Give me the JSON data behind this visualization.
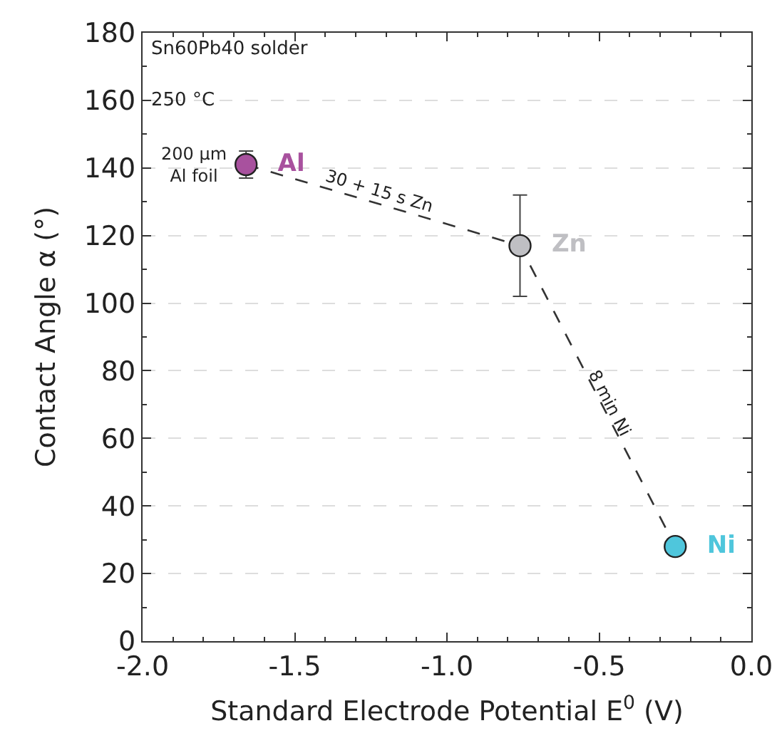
{
  "chart_data": {
    "type": "scatter",
    "xlabel": "Standard Electrode Potential E$^{0}$ (V)",
    "ylabel": "Contact Angle α (°)",
    "xlim": [
      -2.0,
      0.0
    ],
    "xticks": [
      {
        "value": -2,
        "label": "-2.0"
      },
      {
        "value": -1.5,
        "label": "-1.5"
      },
      {
        "value": -1,
        "label": "-1.0"
      },
      {
        "value": -0.5,
        "label": "-0.5"
      },
      {
        "value": 0,
        "label": "0.0"
      }
    ],
    "ylim": [
      0,
      180
    ],
    "yticks": [
      0,
      20,
      40,
      60,
      80,
      100,
      120,
      140,
      160,
      180
    ],
    "grid": "y",
    "legend": false,
    "marker": "circle",
    "series": [
      {
        "type": "line",
        "color": "#333333",
        "line_style": "dashed",
        "marker": "none",
        "x": [
          -1.66,
          -0.76,
          -0.25
        ],
        "values": [
          141,
          117,
          28
        ]
      },
      {
        "name": "Al",
        "color": "#a8519e",
        "x": [
          -1.66
        ],
        "values": [
          141
        ],
        "errors": [
          4
        ]
      },
      {
        "name": "Zn",
        "color": "#bfbfc3",
        "x": [
          -0.76
        ],
        "values": [
          117
        ],
        "errors": [
          15
        ]
      },
      {
        "name": "Ni",
        "color": "#4fc6dc",
        "x": [
          -0.25
        ],
        "values": [
          28
        ]
      }
    ],
    "annotations": [
      "Sn60Pb40 solder",
      "250 °C",
      "200 µm\nAl foil",
      "30 + 15 s Zn",
      "8 min Ni"
    ]
  }
}
